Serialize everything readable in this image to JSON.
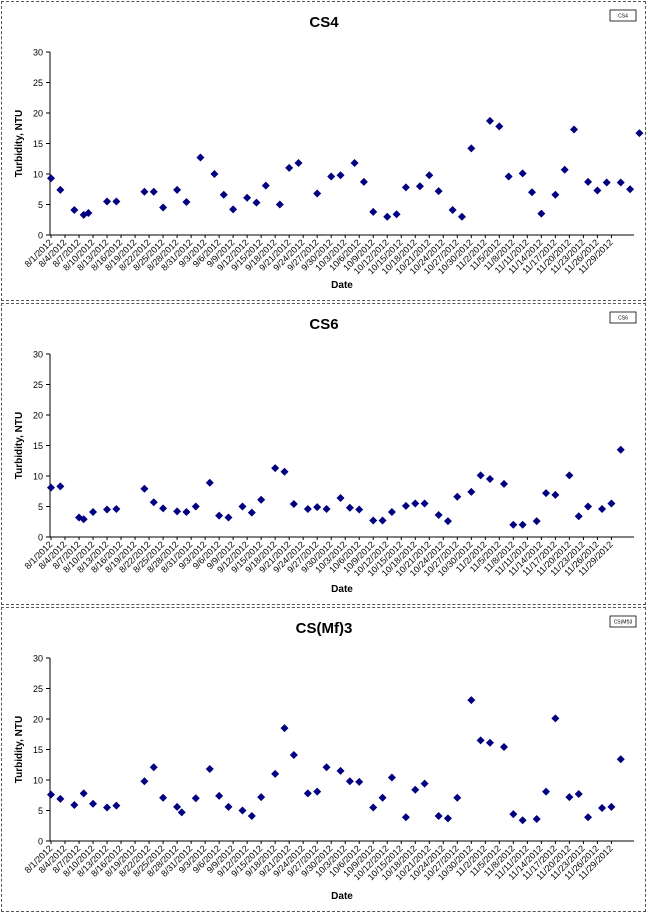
{
  "chart_data": [
    {
      "type": "scatter",
      "title": "CS4",
      "xlabel": "Date",
      "ylabel": "Turbidity, NTU",
      "ylim": [
        0,
        30
      ],
      "yticks": [
        0,
        5,
        10,
        15,
        20,
        25,
        30
      ],
      "grid": false,
      "legend_position": "top-right",
      "xticklabels": [
        "8/1/2012",
        "8/4/2012",
        "8/7/2012",
        "8/10/2012",
        "8/13/2012",
        "8/16/2012",
        "8/19/2012",
        "8/22/2012",
        "8/25/2012",
        "8/28/2012",
        "8/31/2012",
        "9/3/2012",
        "9/6/2012",
        "9/9/2012",
        "9/12/2012",
        "9/15/2012",
        "9/18/2012",
        "9/21/2012",
        "9/24/2012",
        "9/27/2012",
        "9/30/2012",
        "10/3/2012",
        "10/6/2012",
        "10/9/2012",
        "10/12/2012",
        "10/15/2012",
        "10/18/2012",
        "10/21/2012",
        "10/24/2012",
        "10/27/2012",
        "10/30/2012",
        "11/2/2012",
        "11/5/2012",
        "11/8/2012",
        "11/11/2012",
        "11/14/2012",
        "11/17/2012",
        "11/20/2012",
        "11/23/2012",
        "11/26/2012",
        "11/29/2012"
      ],
      "series": [
        {
          "name": "CS4",
          "color": "#000080",
          "marker": "diamond",
          "points": [
            {
              "x": "8/1/2012",
              "y": 9.3
            },
            {
              "x": "8/3/2012",
              "y": 7.4
            },
            {
              "x": "8/6/2012",
              "y": 4.1
            },
            {
              "x": "8/8/2012",
              "y": 3.3
            },
            {
              "x": "8/9/2012",
              "y": 3.6
            },
            {
              "x": "8/13/2012",
              "y": 5.5
            },
            {
              "x": "8/15/2012",
              "y": 5.5
            },
            {
              "x": "8/21/2012",
              "y": 7.1
            },
            {
              "x": "8/23/2012",
              "y": 7.1
            },
            {
              "x": "8/25/2012",
              "y": 4.5
            },
            {
              "x": "8/28/2012",
              "y": 7.4
            },
            {
              "x": "8/30/2012",
              "y": 5.4
            },
            {
              "x": "9/2/2012",
              "y": 12.7
            },
            {
              "x": "9/5/2012",
              "y": 10.0
            },
            {
              "x": "9/7/2012",
              "y": 6.6
            },
            {
              "x": "9/9/2012",
              "y": 4.2
            },
            {
              "x": "9/12/2012",
              "y": 6.1
            },
            {
              "x": "9/14/2012",
              "y": 5.3
            },
            {
              "x": "9/16/2012",
              "y": 8.1
            },
            {
              "x": "9/19/2012",
              "y": 5.0
            },
            {
              "x": "9/21/2012",
              "y": 11.0
            },
            {
              "x": "9/23/2012",
              "y": 11.8
            },
            {
              "x": "9/27/2012",
              "y": 6.8
            },
            {
              "x": "9/30/2012",
              "y": 9.6
            },
            {
              "x": "10/2/2012",
              "y": 9.8
            },
            {
              "x": "10/5/2012",
              "y": 11.8
            },
            {
              "x": "10/7/2012",
              "y": 8.7
            },
            {
              "x": "10/9/2012",
              "y": 3.8
            },
            {
              "x": "10/12/2012",
              "y": 3.0
            },
            {
              "x": "10/14/2012",
              "y": 3.4
            },
            {
              "x": "10/16/2012",
              "y": 7.8
            },
            {
              "x": "10/19/2012",
              "y": 8.0
            },
            {
              "x": "10/21/2012",
              "y": 9.8
            },
            {
              "x": "10/23/2012",
              "y": 7.2
            },
            {
              "x": "10/26/2012",
              "y": 4.1
            },
            {
              "x": "10/28/2012",
              "y": 3.0
            },
            {
              "x": "10/30/2012",
              "y": 14.2
            },
            {
              "x": "11/3/2012",
              "y": 18.7
            },
            {
              "x": "11/5/2012",
              "y": 17.8
            },
            {
              "x": "11/7/2012",
              "y": 9.6
            },
            {
              "x": "11/10/2012",
              "y": 10.1
            },
            {
              "x": "11/12/2012",
              "y": 7.0
            },
            {
              "x": "11/14/2012",
              "y": 3.5
            },
            {
              "x": "11/17/2012",
              "y": 6.6
            },
            {
              "x": "11/19/2012",
              "y": 10.7
            },
            {
              "x": "11/21/2012",
              "y": 17.3
            },
            {
              "x": "11/24/2012",
              "y": 8.7
            },
            {
              "x": "11/26/2012",
              "y": 7.3
            },
            {
              "x": "11/28/2012",
              "y": 8.6
            },
            {
              "x": "12/1/2012",
              "y": 8.6
            },
            {
              "x": "12/3/2012",
              "y": 7.5
            },
            {
              "x": "12/5/2012",
              "y": 16.7
            }
          ]
        }
      ]
    },
    {
      "type": "scatter",
      "title": "CS6",
      "xlabel": "Date",
      "ylabel": "Turbidity, NTU",
      "ylim": [
        0,
        30
      ],
      "yticks": [
        0,
        5,
        10,
        15,
        20,
        25,
        30
      ],
      "grid": false,
      "legend_position": "top-right",
      "xticklabels": [
        "8/1/2012",
        "8/4/2012",
        "8/7/2012",
        "8/10/2012",
        "8/13/2012",
        "8/16/2012",
        "8/19/2012",
        "8/22/2012",
        "8/25/2012",
        "8/28/2012",
        "8/31/2012",
        "9/3/2012",
        "9/6/2012",
        "9/9/2012",
        "9/12/2012",
        "9/15/2012",
        "9/18/2012",
        "9/21/2012",
        "9/24/2012",
        "9/27/2012",
        "9/30/2012",
        "10/3/2012",
        "10/6/2012",
        "10/9/2012",
        "10/12/2012",
        "10/15/2012",
        "10/18/2012",
        "10/21/2012",
        "10/24/2012",
        "10/27/2012",
        "10/30/2012",
        "11/2/2012",
        "11/5/2012",
        "11/8/2012",
        "11/11/2012",
        "11/14/2012",
        "11/17/2012",
        "11/20/2012",
        "11/23/2012",
        "11/26/2012",
        "11/29/2012"
      ],
      "series": [
        {
          "name": "CS6",
          "color": "#000080",
          "marker": "diamond",
          "points": [
            {
              "x": "8/1/2012",
              "y": 8.1
            },
            {
              "x": "8/3/2012",
              "y": 8.3
            },
            {
              "x": "8/7/2012",
              "y": 3.2
            },
            {
              "x": "8/8/2012",
              "y": 2.9
            },
            {
              "x": "8/10/2012",
              "y": 4.1
            },
            {
              "x": "8/13/2012",
              "y": 4.5
            },
            {
              "x": "8/15/2012",
              "y": 4.6
            },
            {
              "x": "8/21/2012",
              "y": 7.9
            },
            {
              "x": "8/23/2012",
              "y": 5.7
            },
            {
              "x": "8/25/2012",
              "y": 4.7
            },
            {
              "x": "8/28/2012",
              "y": 4.2
            },
            {
              "x": "8/30/2012",
              "y": 4.1
            },
            {
              "x": "9/1/2012",
              "y": 5.0
            },
            {
              "x": "9/4/2012",
              "y": 8.9
            },
            {
              "x": "9/6/2012",
              "y": 3.5
            },
            {
              "x": "9/8/2012",
              "y": 3.2
            },
            {
              "x": "9/11/2012",
              "y": 5.0
            },
            {
              "x": "9/13/2012",
              "y": 4.0
            },
            {
              "x": "9/15/2012",
              "y": 6.1
            },
            {
              "x": "9/18/2012",
              "y": 11.3
            },
            {
              "x": "9/20/2012",
              "y": 10.7
            },
            {
              "x": "9/22/2012",
              "y": 5.4
            },
            {
              "x": "9/25/2012",
              "y": 4.6
            },
            {
              "x": "9/27/2012",
              "y": 4.9
            },
            {
              "x": "9/29/2012",
              "y": 4.6
            },
            {
              "x": "10/2/2012",
              "y": 6.4
            },
            {
              "x": "10/4/2012",
              "y": 4.8
            },
            {
              "x": "10/6/2012",
              "y": 4.5
            },
            {
              "x": "10/9/2012",
              "y": 2.7
            },
            {
              "x": "10/11/2012",
              "y": 2.7
            },
            {
              "x": "10/13/2012",
              "y": 4.1
            },
            {
              "x": "10/16/2012",
              "y": 5.1
            },
            {
              "x": "10/18/2012",
              "y": 5.5
            },
            {
              "x": "10/20/2012",
              "y": 5.5
            },
            {
              "x": "10/23/2012",
              "y": 3.6
            },
            {
              "x": "10/25/2012",
              "y": 2.6
            },
            {
              "x": "10/27/2012",
              "y": 6.6
            },
            {
              "x": "10/30/2012",
              "y": 7.4
            },
            {
              "x": "11/1/2012",
              "y": 10.1
            },
            {
              "x": "11/3/2012",
              "y": 9.5
            },
            {
              "x": "11/6/2012",
              "y": 8.7
            },
            {
              "x": "11/8/2012",
              "y": 2.0
            },
            {
              "x": "11/10/2012",
              "y": 2.0
            },
            {
              "x": "11/13/2012",
              "y": 2.6
            },
            {
              "x": "11/15/2012",
              "y": 7.2
            },
            {
              "x": "11/17/2012",
              "y": 6.9
            },
            {
              "x": "11/20/2012",
              "y": 10.1
            },
            {
              "x": "11/22/2012",
              "y": 3.4
            },
            {
              "x": "11/24/2012",
              "y": 5.0
            },
            {
              "x": "11/27/2012",
              "y": 4.6
            },
            {
              "x": "11/29/2012",
              "y": 5.5
            },
            {
              "x": "12/1/2012",
              "y": 14.3
            }
          ]
        }
      ]
    },
    {
      "type": "scatter",
      "title": "CS(Mf)3",
      "xlabel": "Date",
      "ylabel": "Turbidity, NTU",
      "ylim": [
        0,
        30
      ],
      "yticks": [
        0,
        5,
        10,
        15,
        20,
        25,
        30
      ],
      "grid": false,
      "legend_position": "top-right",
      "xticklabels": [
        "8/1/2012",
        "8/4/2012",
        "8/7/2012",
        "8/10/2012",
        "8/13/2012",
        "8/16/2012",
        "8/19/2012",
        "8/22/2012",
        "8/25/2012",
        "8/28/2012",
        "8/31/2012",
        "9/3/2012",
        "9/6/2012",
        "9/9/2012",
        "9/12/2012",
        "9/15/2012",
        "9/18/2012",
        "9/21/2012",
        "9/24/2012",
        "9/27/2012",
        "9/30/2012",
        "10/3/2012",
        "10/6/2012",
        "10/9/2012",
        "10/12/2012",
        "10/15/2012",
        "10/18/2012",
        "10/21/2012",
        "10/24/2012",
        "10/27/2012",
        "10/30/2012",
        "11/2/2012",
        "11/5/2012",
        "11/8/2012",
        "11/11/2012",
        "11/14/2012",
        "11/17/2012",
        "11/20/2012",
        "11/23/2012",
        "11/26/2012",
        "11/29/2012"
      ],
      "series": [
        {
          "name": "CS(Mf)3",
          "color": "#000080",
          "marker": "diamond",
          "points": [
            {
              "x": "8/1/2012",
              "y": 7.6
            },
            {
              "x": "8/3/2012",
              "y": 6.9
            },
            {
              "x": "8/6/2012",
              "y": 5.9
            },
            {
              "x": "8/8/2012",
              "y": 7.8
            },
            {
              "x": "8/10/2012",
              "y": 6.1
            },
            {
              "x": "8/13/2012",
              "y": 5.5
            },
            {
              "x": "8/15/2012",
              "y": 5.8
            },
            {
              "x": "8/21/2012",
              "y": 9.8
            },
            {
              "x": "8/23/2012",
              "y": 12.1
            },
            {
              "x": "8/25/2012",
              "y": 7.1
            },
            {
              "x": "8/28/2012",
              "y": 5.6
            },
            {
              "x": "8/29/2012",
              "y": 4.7
            },
            {
              "x": "9/1/2012",
              "y": 7.0
            },
            {
              "x": "9/4/2012",
              "y": 11.8
            },
            {
              "x": "9/6/2012",
              "y": 7.4
            },
            {
              "x": "9/8/2012",
              "y": 5.6
            },
            {
              "x": "9/11/2012",
              "y": 5.0
            },
            {
              "x": "9/13/2012",
              "y": 4.1
            },
            {
              "x": "9/15/2012",
              "y": 7.2
            },
            {
              "x": "9/18/2012",
              "y": 11.0
            },
            {
              "x": "9/20/2012",
              "y": 18.5
            },
            {
              "x": "9/22/2012",
              "y": 14.1
            },
            {
              "x": "9/25/2012",
              "y": 7.8
            },
            {
              "x": "9/27/2012",
              "y": 8.1
            },
            {
              "x": "9/29/2012",
              "y": 12.1
            },
            {
              "x": "10/2/2012",
              "y": 11.5
            },
            {
              "x": "10/4/2012",
              "y": 9.8
            },
            {
              "x": "10/6/2012",
              "y": 9.7
            },
            {
              "x": "10/9/2012",
              "y": 5.5
            },
            {
              "x": "10/11/2012",
              "y": 7.1
            },
            {
              "x": "10/13/2012",
              "y": 10.4
            },
            {
              "x": "10/16/2012",
              "y": 3.9
            },
            {
              "x": "10/18/2012",
              "y": 8.4
            },
            {
              "x": "10/20/2012",
              "y": 9.4
            },
            {
              "x": "10/23/2012",
              "y": 4.1
            },
            {
              "x": "10/25/2012",
              "y": 3.7
            },
            {
              "x": "10/27/2012",
              "y": 7.1
            },
            {
              "x": "10/30/2012",
              "y": 23.1
            },
            {
              "x": "11/1/2012",
              "y": 16.5
            },
            {
              "x": "11/3/2012",
              "y": 16.1
            },
            {
              "x": "11/6/2012",
              "y": 15.4
            },
            {
              "x": "11/8/2012",
              "y": 4.4
            },
            {
              "x": "11/10/2012",
              "y": 3.4
            },
            {
              "x": "11/13/2012",
              "y": 3.6
            },
            {
              "x": "11/15/2012",
              "y": 8.1
            },
            {
              "x": "11/17/2012",
              "y": 20.1
            },
            {
              "x": "11/20/2012",
              "y": 7.2
            },
            {
              "x": "11/22/2012",
              "y": 7.7
            },
            {
              "x": "11/24/2012",
              "y": 3.9
            },
            {
              "x": "11/27/2012",
              "y": 5.4
            },
            {
              "x": "11/29/2012",
              "y": 5.6
            },
            {
              "x": "12/1/2012",
              "y": 13.4
            }
          ]
        }
      ]
    }
  ]
}
